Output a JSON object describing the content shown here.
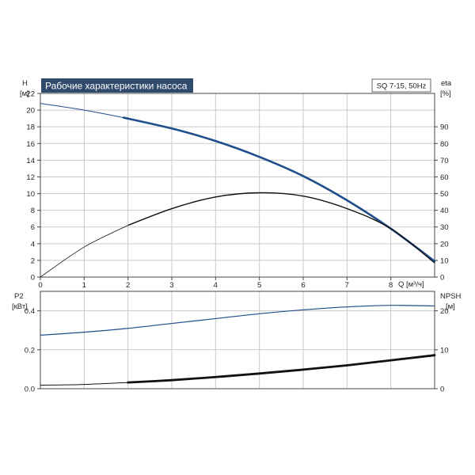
{
  "title": "Рабочие характеристики насоса",
  "badge": "SQ 7-15, 50Hz",
  "colors": {
    "blue": "#1f4e8c",
    "black": "#111111",
    "title_bg": "#2f4a6b",
    "grid": "#c9c9c9"
  },
  "chart_data": [
    {
      "type": "line",
      "panel": "top",
      "xlabel": "Q [м³/ч]",
      "ylabel": "H",
      "ylabel_unit": "[м]",
      "y2label": "eta",
      "y2label_unit": "[%]",
      "xlim": [
        0,
        9
      ],
      "ylim": [
        0,
        22
      ],
      "y2lim": [
        0,
        110
      ],
      "xticks": [
        "0",
        "1",
        "2",
        "3",
        "4",
        "5",
        "6",
        "7",
        "8"
      ],
      "yticks": [
        "0",
        "2",
        "4",
        "6",
        "8",
        "10",
        "12",
        "14",
        "16",
        "18",
        "20",
        "22"
      ],
      "y2ticks": [
        "0",
        "10",
        "20",
        "30",
        "40",
        "50",
        "60",
        "70",
        "80",
        "90"
      ],
      "grid": true,
      "series": [
        {
          "axis": "left",
          "x": [
            0,
            1,
            1.9,
            3,
            4,
            5,
            6,
            7,
            8,
            9
          ],
          "y": [
            20.8,
            20.0,
            19.1,
            17.8,
            16.3,
            14.4,
            12.1,
            9.2,
            5.8,
            1.9
          ]
        },
        {
          "axis": "right",
          "x": [
            0,
            1,
            2,
            3,
            4,
            5,
            6,
            7,
            8,
            9
          ],
          "y": [
            0,
            18,
            31,
            41,
            48,
            50.5,
            48.5,
            41,
            29,
            8.5
          ]
        }
      ]
    },
    {
      "type": "line",
      "panel": "bottom",
      "ylabel": "P2",
      "ylabel_unit": "[кВт]",
      "y2label": "NPSH",
      "y2label_unit": "[м]",
      "xlim": [
        0,
        9
      ],
      "ylim": [
        0,
        0.5
      ],
      "y2lim": [
        0,
        25
      ],
      "yticks": [
        "0.0",
        "0.2",
        "0.4"
      ],
      "y2ticks": [
        "0",
        "10",
        "20"
      ],
      "grid": true,
      "series": [
        {
          "axis": "left",
          "x": [
            0,
            1,
            2,
            3,
            4,
            5,
            6,
            7,
            8,
            9
          ],
          "y": [
            0.275,
            0.29,
            0.31,
            0.335,
            0.36,
            0.385,
            0.405,
            0.42,
            0.428,
            0.425
          ]
        },
        {
          "axis": "right",
          "x": [
            0,
            1,
            2,
            3,
            4,
            5,
            6,
            7,
            8,
            9
          ],
          "y": [
            0.9,
            1.1,
            1.6,
            2.2,
            3.0,
            3.9,
            4.9,
            6.0,
            7.3,
            8.6
          ]
        }
      ]
    }
  ]
}
